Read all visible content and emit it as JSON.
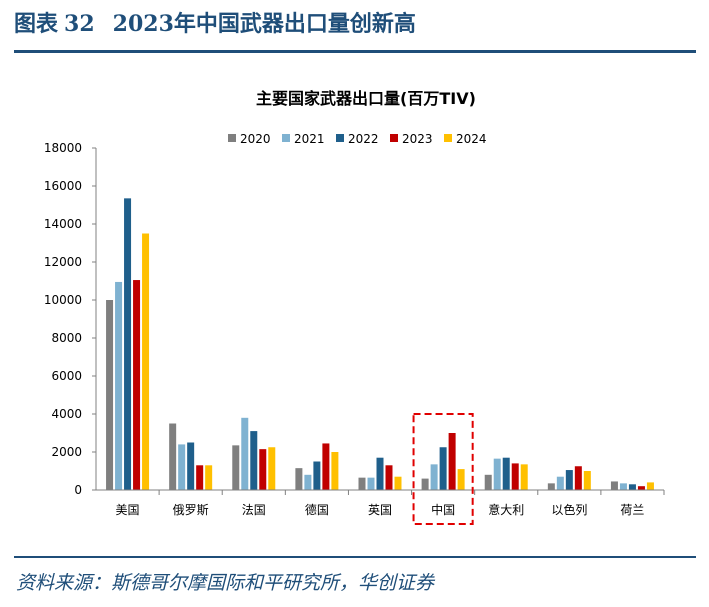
{
  "figure": {
    "label": "图表",
    "number": "32",
    "title": "2023年中国武器出口量创新高",
    "source": "资料来源：斯德哥尔摩国际和平研究所，华创证券"
  },
  "chart_data": {
    "type": "bar",
    "title": "主要国家武器出口量(百万TIV)",
    "categories": [
      "美国",
      "俄罗斯",
      "法国",
      "德国",
      "英国",
      "中国",
      "意大利",
      "以色列",
      "荷兰"
    ],
    "series": [
      {
        "name": "2020",
        "color": "#7f7f7f",
        "values": [
          10000,
          3500,
          2350,
          1150,
          650,
          600,
          800,
          350,
          450
        ]
      },
      {
        "name": "2021",
        "color": "#7fb2d1",
        "values": [
          10950,
          2400,
          3800,
          800,
          650,
          1350,
          1650,
          700,
          350
        ]
      },
      {
        "name": "2022",
        "color": "#1f5f8b",
        "values": [
          15350,
          2500,
          3100,
          1500,
          1700,
          2250,
          1700,
          1050,
          300
        ]
      },
      {
        "name": "2023",
        "color": "#c00000",
        "values": [
          11050,
          1300,
          2150,
          2450,
          1300,
          3000,
          1400,
          1250,
          200
        ]
      },
      {
        "name": "2024",
        "color": "#ffc000",
        "values": [
          13500,
          1300,
          2250,
          2000,
          700,
          1100,
          1350,
          1000,
          400
        ]
      }
    ],
    "ylim": [
      0,
      18000
    ],
    "yticks": [
      0,
      2000,
      4000,
      6000,
      8000,
      10000,
      12000,
      14000,
      16000,
      18000
    ],
    "highlight_category": "中国",
    "legend_position": "top"
  }
}
